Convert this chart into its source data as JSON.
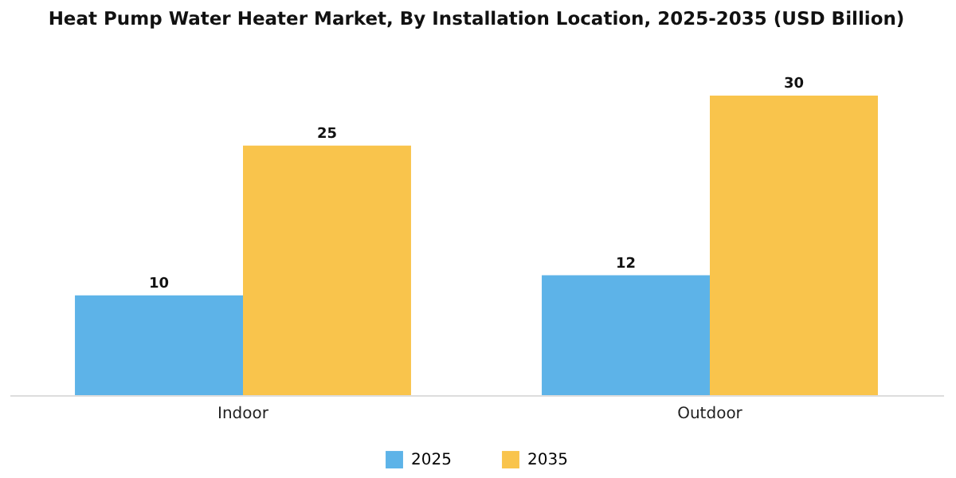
{
  "chart_data": {
    "type": "bar",
    "title": "Heat Pump Water Heater Market, By Installation Location, 2025-2035 (USD Billion)",
    "categories": [
      "Indoor",
      "Outdoor"
    ],
    "series": [
      {
        "name": "2025",
        "color": "#5db3e8",
        "values": [
          10,
          12
        ]
      },
      {
        "name": "2035",
        "color": "#f9c44c",
        "values": [
          25,
          30
        ]
      }
    ],
    "data_labels": true,
    "legend": "bottom",
    "tick_labels": "x"
  }
}
